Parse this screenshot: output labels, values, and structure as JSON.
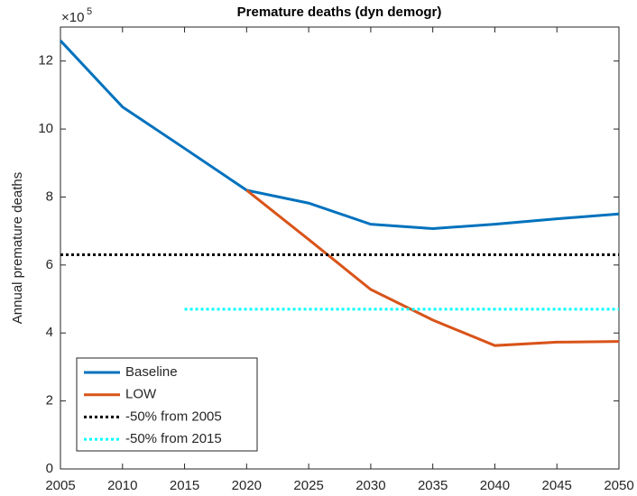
{
  "chart_data": {
    "type": "line",
    "title": "Premature deaths (dyn demogr)",
    "ylabel": "Annual premature deaths",
    "y_exponent": {
      "base": "×10",
      "power": "5"
    },
    "x": [
      2005,
      2010,
      2015,
      2020,
      2025,
      2030,
      2035,
      2040,
      2045,
      2050
    ],
    "series": [
      {
        "name": "Baseline",
        "color": "#0072bd",
        "style": "solid",
        "values": [
          12.6,
          10.65,
          9.43,
          8.2,
          7.82,
          7.2,
          7.07,
          7.2,
          7.36,
          7.5
        ]
      },
      {
        "name": "LOW",
        "color": "#d95319",
        "style": "solid",
        "values": [
          null,
          null,
          null,
          8.2,
          6.75,
          5.28,
          4.38,
          3.63,
          3.73,
          3.75
        ]
      },
      {
        "name": "-50% from 2005",
        "color": "#000000",
        "style": "dotted",
        "values": [
          6.3,
          6.3,
          6.3,
          6.3,
          6.3,
          6.3,
          6.3,
          6.3,
          6.3,
          6.3
        ]
      },
      {
        "name": "-50% from 2015",
        "color": "#00ffff",
        "style": "dotted",
        "values": [
          null,
          null,
          4.7,
          4.7,
          4.7,
          4.7,
          4.7,
          4.7,
          4.7,
          4.7
        ]
      }
    ],
    "xlim": [
      2005,
      2050
    ],
    "xticks": [
      2005,
      2010,
      2015,
      2020,
      2025,
      2030,
      2035,
      2040,
      2045,
      2050
    ],
    "ylim": [
      0,
      13
    ],
    "yticks": [
      0,
      2,
      4,
      6,
      8,
      10,
      12
    ],
    "grid": false,
    "legend": "lower-left"
  }
}
